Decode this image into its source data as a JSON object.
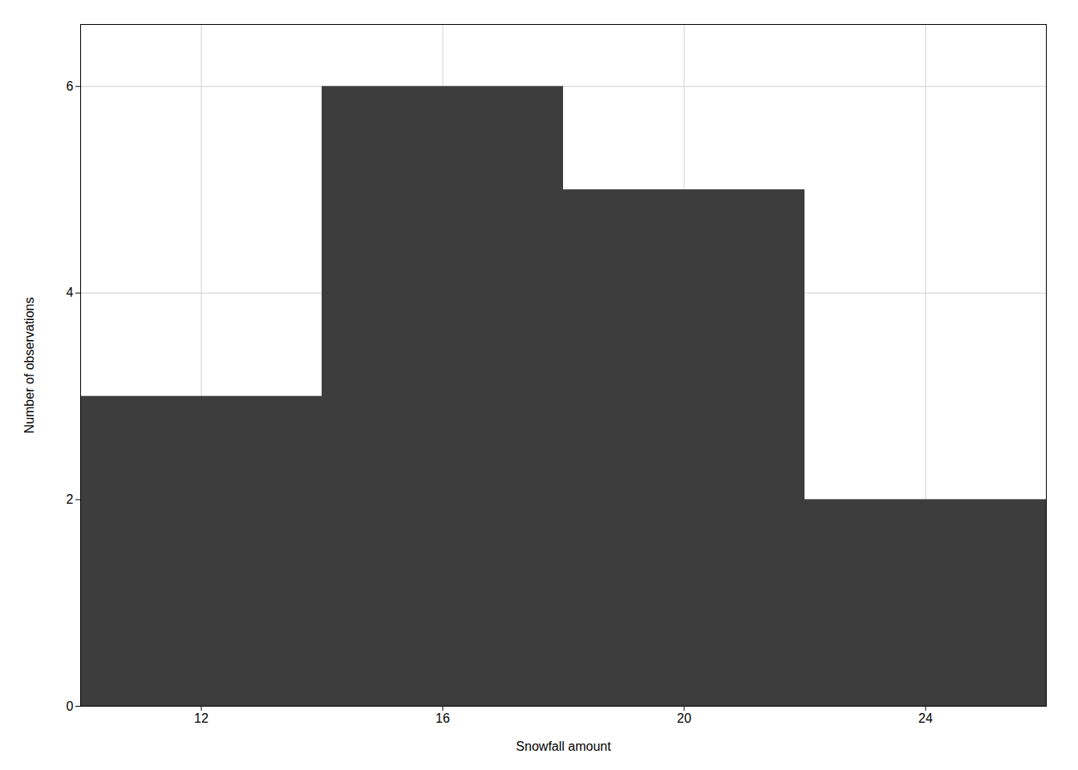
{
  "chart_data": {
    "type": "histogram",
    "bins": [
      10,
      14,
      18,
      22,
      26
    ],
    "values": [
      3,
      6,
      5,
      2
    ],
    "color": "#3d3d3d",
    "xlabel": "Snowfall amount",
    "ylabel": "Number of observations",
    "xlim": [
      10,
      26
    ],
    "ylim": [
      0,
      6.6
    ],
    "xticks": [
      12,
      16,
      20,
      24
    ],
    "yticks": [
      0,
      2,
      4,
      6
    ],
    "grid": true
  }
}
